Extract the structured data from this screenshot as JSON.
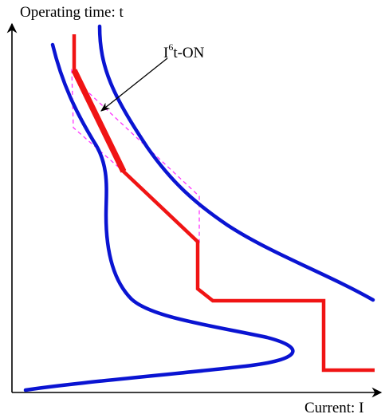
{
  "axes": {
    "y_label": "Operating time: t",
    "x_label": "Current: I"
  },
  "callout": {
    "base": "I",
    "superscript": "6",
    "suffix": "t-ON"
  },
  "colors": {
    "axis": "#000000",
    "blue_curve": "#0a14d2",
    "red_curve": "#f01414",
    "dashed_box": "#ff33ff"
  }
}
